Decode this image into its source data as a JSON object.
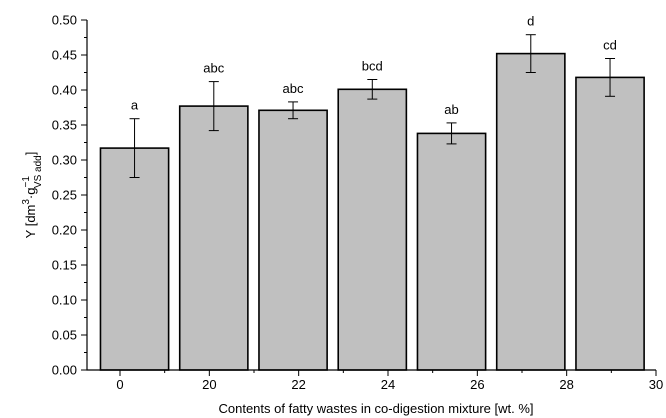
{
  "chart_data": {
    "type": "bar",
    "xlabel": "Contents of fatty wastes in co-digestion mixture [wt. %]",
    "ylabel": {
      "prefix": "Y [dm",
      "sup1": "3",
      "mid": "·g",
      "sup2": "−1",
      "sub": "VS add",
      "suffix": "]"
    },
    "ylim": [
      0.0,
      0.5
    ],
    "yticks": [
      "0.00",
      "0.05",
      "0.10",
      "0.15",
      "0.20",
      "0.25",
      "0.30",
      "0.35",
      "0.40",
      "0.45",
      "0.50"
    ],
    "xticks": [
      "0",
      "20",
      "22",
      "24",
      "26",
      "28",
      "30"
    ],
    "bar_color": "#c0c0c0",
    "bars": [
      {
        "value": 0.317,
        "error": 0.042,
        "label": "a"
      },
      {
        "value": 0.377,
        "error": 0.035,
        "label": "abc"
      },
      {
        "value": 0.371,
        "error": 0.012,
        "label": "abc"
      },
      {
        "value": 0.401,
        "error": 0.014,
        "label": "bcd"
      },
      {
        "value": 0.338,
        "error": 0.015,
        "label": "ab"
      },
      {
        "value": 0.452,
        "error": 0.027,
        "label": "d"
      },
      {
        "value": 0.418,
        "error": 0.027,
        "label": "cd"
      }
    ]
  }
}
